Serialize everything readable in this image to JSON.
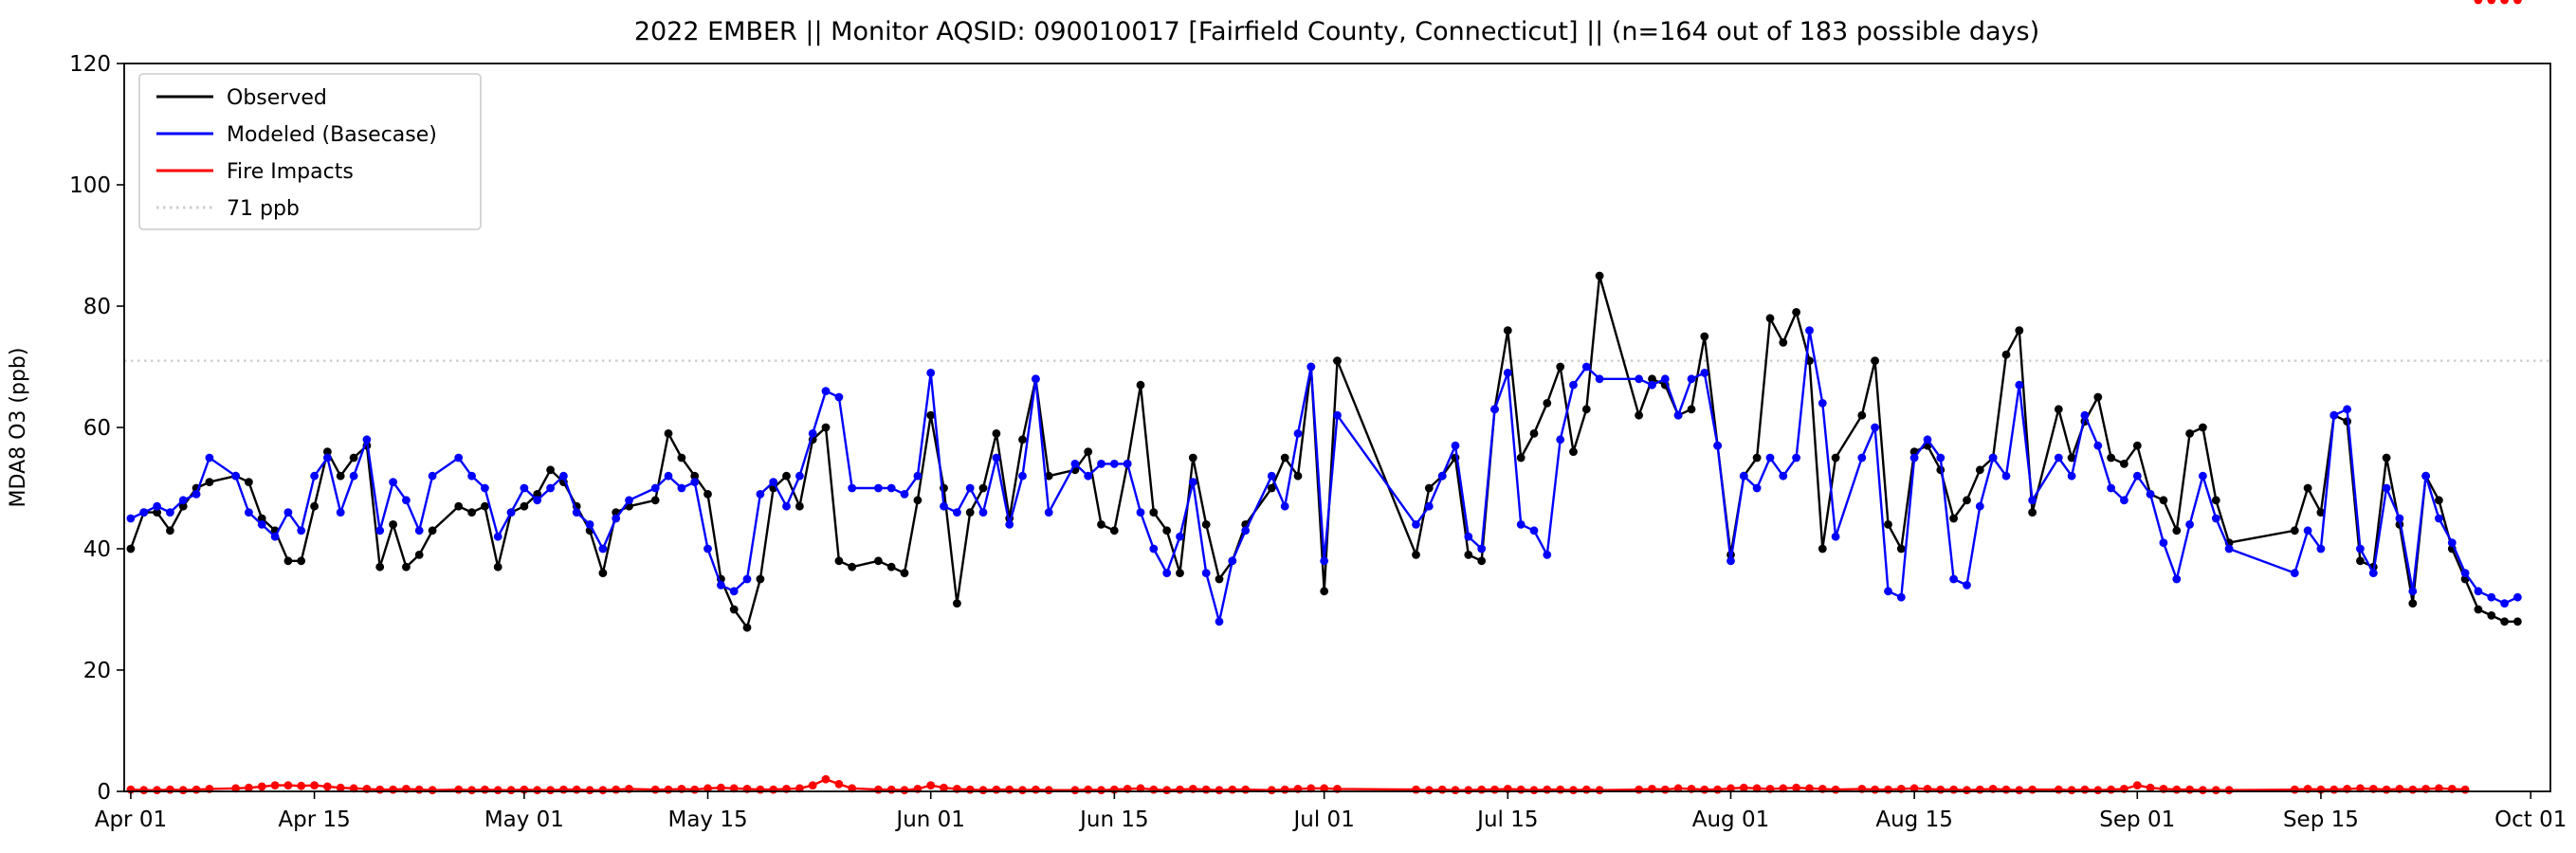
{
  "chart_data": {
    "type": "line",
    "title": "2022 EMBER || Monitor AQSID: 090010017 [Fairfield County, Connecticut] || (n=164 out of 183 possible days)",
    "xlabel": "",
    "ylabel": "MDA8 O3 (ppb)",
    "ylim": [
      0,
      120
    ],
    "xlim": [
      -0.5,
      184.5
    ],
    "yticks": [
      0,
      20,
      40,
      60,
      80,
      100,
      120
    ],
    "x_unit": "days since Apr 01",
    "xticks": [
      {
        "pos": 0,
        "label": "Apr 01"
      },
      {
        "pos": 14,
        "label": "Apr 15"
      },
      {
        "pos": 30,
        "label": "May 01"
      },
      {
        "pos": 44,
        "label": "May 15"
      },
      {
        "pos": 61,
        "label": "Jun 01"
      },
      {
        "pos": 75,
        "label": "Jun 15"
      },
      {
        "pos": 91,
        "label": "Jul 01"
      },
      {
        "pos": 105,
        "label": "Jul 15"
      },
      {
        "pos": 122,
        "label": "Aug 01"
      },
      {
        "pos": 136,
        "label": "Aug 15"
      },
      {
        "pos": 153,
        "label": "Sep 01"
      },
      {
        "pos": 167,
        "label": "Sep 15"
      },
      {
        "pos": 183,
        "label": "Oct 01"
      }
    ],
    "threshold": {
      "value": 71,
      "label": "71 ppb",
      "color": "#cccccc",
      "style": "dotted"
    },
    "legend": [
      {
        "label": "Observed",
        "color": "#000000",
        "style": "solid"
      },
      {
        "label": "Modeled (Basecase)",
        "color": "#0000ff",
        "style": "solid"
      },
      {
        "label": "Fire Impacts",
        "color": "#ff0000",
        "style": "solid"
      },
      {
        "label": "71 ppb",
        "color": "#cccccc",
        "style": "dotted"
      }
    ],
    "n_shown": 164,
    "n_possible": 183,
    "x": [
      0,
      1,
      2,
      3,
      4,
      5,
      6,
      8,
      9,
      10,
      11,
      12,
      13,
      14,
      15,
      16,
      17,
      18,
      19,
      20,
      21,
      22,
      23,
      25,
      26,
      27,
      28,
      29,
      30,
      31,
      32,
      33,
      34,
      35,
      36,
      37,
      38,
      40,
      41,
      42,
      43,
      44,
      45,
      46,
      47,
      48,
      49,
      50,
      51,
      52,
      53,
      54,
      55,
      57,
      58,
      59,
      60,
      61,
      62,
      63,
      64,
      65,
      66,
      67,
      68,
      69,
      70,
      72,
      73,
      74,
      75,
      76,
      77,
      78,
      79,
      80,
      81,
      82,
      83,
      84,
      85,
      87,
      88,
      89,
      90,
      91,
      92,
      98,
      99,
      100,
      101,
      102,
      103,
      104,
      105,
      106,
      107,
      108,
      109,
      110,
      111,
      112,
      115,
      116,
      117,
      118,
      119,
      120,
      121,
      122,
      123,
      124,
      125,
      126,
      127,
      128,
      129,
      130,
      132,
      133,
      134,
      135,
      136,
      137,
      138,
      139,
      140,
      141,
      142,
      143,
      144,
      145,
      147,
      148,
      149,
      150,
      151,
      152,
      153,
      154,
      155,
      156,
      157,
      158,
      159,
      160,
      165,
      166,
      167,
      168,
      169,
      170,
      171,
      172,
      173,
      174,
      175,
      176,
      177,
      178,
      179,
      180,
      181,
      182
    ],
    "series": [
      {
        "name": "Observed",
        "color": "#000000",
        "y": [
          40,
          46,
          46,
          43,
          47,
          50,
          51,
          52,
          51,
          45,
          43,
          38,
          38,
          47,
          56,
          52,
          55,
          57,
          37,
          44,
          37,
          39,
          43,
          47,
          46,
          47,
          37,
          46,
          47,
          49,
          53,
          51,
          47,
          43,
          36,
          46,
          47,
          48,
          59,
          55,
          52,
          49,
          35,
          30,
          27,
          35,
          50,
          52,
          47,
          58,
          60,
          38,
          37,
          38,
          37,
          36,
          48,
          62,
          50,
          31,
          46,
          50,
          59,
          45,
          58,
          68,
          52,
          53,
          56,
          44,
          43,
          54,
          67,
          46,
          43,
          36,
          55,
          44,
          35,
          38,
          44,
          50,
          55,
          52,
          70,
          33,
          71,
          39,
          50,
          52,
          55,
          39,
          38,
          63,
          76,
          55,
          59,
          64,
          70,
          56,
          63,
          85,
          62,
          68,
          67,
          62,
          63,
          75,
          57,
          39,
          52,
          55,
          78,
          74,
          79,
          71,
          40,
          55,
          62,
          71,
          44,
          40,
          56,
          57,
          53,
          45,
          48,
          53,
          55,
          72,
          76,
          46,
          63,
          55,
          61,
          65,
          55,
          54,
          57,
          49,
          48,
          43,
          59,
          60,
          48,
          41,
          43,
          50,
          46,
          62,
          61,
          38,
          37,
          55,
          44,
          31,
          52,
          48,
          40,
          35,
          30,
          29,
          28,
          28
        ]
      },
      {
        "name": "Modeled (Basecase)",
        "color": "#0000ff",
        "y": [
          45,
          46,
          47,
          46,
          48,
          49,
          55,
          52,
          46,
          44,
          42,
          46,
          43,
          52,
          55,
          46,
          52,
          58,
          43,
          51,
          48,
          43,
          52,
          55,
          52,
          50,
          42,
          46,
          50,
          48,
          50,
          52,
          46,
          44,
          40,
          45,
          48,
          50,
          52,
          50,
          51,
          40,
          34,
          33,
          35,
          49,
          51,
          47,
          52,
          59,
          66,
          65,
          50,
          50,
          50,
          49,
          52,
          69,
          47,
          46,
          50,
          46,
          55,
          44,
          52,
          68,
          46,
          54,
          52,
          54,
          54,
          54,
          46,
          40,
          36,
          42,
          51,
          36,
          28,
          38,
          43,
          52,
          47,
          59,
          70,
          38,
          62,
          44,
          47,
          52,
          57,
          42,
          40,
          63,
          69,
          44,
          43,
          39,
          58,
          67,
          70,
          68,
          68,
          67,
          68,
          62,
          68,
          69,
          57,
          38,
          52,
          50,
          55,
          52,
          55,
          76,
          64,
          42,
          55,
          60,
          33,
          32,
          55,
          58,
          55,
          35,
          34,
          47,
          55,
          52,
          67,
          48,
          55,
          52,
          62,
          57,
          50,
          48,
          52,
          49,
          41,
          35,
          44,
          52,
          45,
          40,
          36,
          43,
          40,
          62,
          63,
          40,
          36,
          50,
          45,
          33,
          52,
          45,
          41,
          36,
          33,
          32,
          31,
          32
        ]
      },
      {
        "name": "Fire Impacts",
        "color": "#ff0000",
        "y": [
          0.3,
          0.2,
          0.2,
          0.3,
          0.2,
          0.3,
          0.4,
          0.5,
          0.6,
          0.8,
          1.0,
          1.0,
          0.9,
          1.0,
          0.8,
          0.6,
          0.5,
          0.4,
          0.3,
          0.3,
          0.4,
          0.3,
          0.2,
          0.3,
          0.2,
          0.3,
          0.2,
          0.2,
          0.3,
          0.2,
          0.2,
          0.3,
          0.3,
          0.2,
          0.2,
          0.3,
          0.4,
          0.3,
          0.3,
          0.4,
          0.3,
          0.5,
          0.6,
          0.5,
          0.4,
          0.3,
          0.3,
          0.4,
          0.5,
          1.0,
          2.0,
          1.2,
          0.5,
          0.3,
          0.3,
          0.2,
          0.4,
          1.0,
          0.6,
          0.4,
          0.3,
          0.2,
          0.3,
          0.3,
          0.2,
          0.3,
          0.2,
          0.2,
          0.3,
          0.2,
          0.3,
          0.4,
          0.5,
          0.3,
          0.2,
          0.3,
          0.4,
          0.3,
          0.2,
          0.3,
          0.3,
          0.2,
          0.3,
          0.4,
          0.5,
          0.5,
          0.4,
          0.3,
          0.2,
          0.3,
          0.2,
          0.2,
          0.3,
          0.3,
          0.4,
          0.3,
          0.2,
          0.3,
          0.3,
          0.2,
          0.3,
          0.2,
          0.3,
          0.4,
          0.3,
          0.5,
          0.4,
          0.3,
          0.3,
          0.5,
          0.6,
          0.5,
          0.4,
          0.5,
          0.6,
          0.5,
          0.4,
          0.3,
          0.4,
          0.3,
          0.3,
          0.4,
          0.5,
          0.4,
          0.3,
          0.3,
          0.2,
          0.3,
          0.4,
          0.3,
          0.2,
          0.3,
          0.3,
          0.2,
          0.3,
          0.2,
          0.3,
          0.4,
          1.0,
          0.6,
          0.4,
          0.3,
          0.3,
          0.2,
          0.2,
          0.2,
          0.3,
          0.4,
          0.3,
          0.3,
          0.4,
          0.5,
          0.4,
          0.3,
          0.4,
          0.3,
          0.4,
          0.5,
          0.4,
          0.3
        ]
      }
    ]
  }
}
